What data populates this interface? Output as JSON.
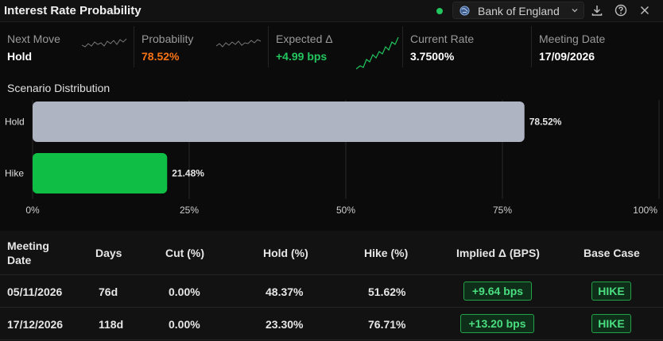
{
  "header": {
    "title": "Interest Rate Probability",
    "source": "Bank of England",
    "icons": [
      "globe-icon",
      "chevron-down-icon",
      "download-icon",
      "help-icon",
      "close-icon"
    ]
  },
  "stats": [
    {
      "label": "Next Move",
      "value": "Hold",
      "color": "#ffffff"
    },
    {
      "label": "Probability",
      "value": "78.52%",
      "color": "#f97316"
    },
    {
      "label": "Expected Δ",
      "value": "+4.99 bps",
      "color": "#22c55e"
    },
    {
      "label": "Current Rate",
      "value": "3.7500%",
      "color": "#ffffff"
    },
    {
      "label": "Meeting Date",
      "value": "17/09/2026",
      "color": "#ffffff"
    }
  ],
  "chart_data": {
    "type": "bar",
    "orientation": "horizontal",
    "title": "Scenario Distribution",
    "categories": [
      "Hold",
      "Hike"
    ],
    "values": [
      78.52,
      21.48
    ],
    "value_labels": [
      "78.52%",
      "21.48%"
    ],
    "colors": [
      "#aeb4c2",
      "#0fbf45"
    ],
    "xlim": [
      0,
      100
    ],
    "x_ticks": [
      "0%",
      "25%",
      "50%",
      "75%",
      "100%"
    ],
    "grid": true
  },
  "table": {
    "headers": [
      "Meeting Date",
      "Days",
      "Cut (%)",
      "Hold (%)",
      "Hike (%)",
      "Implied Δ (BPS)",
      "Base Case"
    ],
    "rows": [
      {
        "date": "05/11/2026",
        "days": "76d",
        "cut": "0.00%",
        "hold": "48.37%",
        "hike": "51.62%",
        "implied": "+9.64 bps",
        "base": "HIKE"
      },
      {
        "date": "17/12/2026",
        "days": "118d",
        "cut": "0.00%",
        "hold": "23.30%",
        "hike": "76.71%",
        "implied": "+13.20 bps",
        "base": "HIKE"
      }
    ]
  },
  "colors": {
    "accent_green": "#22c55e",
    "accent_orange": "#f97316",
    "bar_hold": "#aeb4c2",
    "bar_hike": "#0fbf45"
  }
}
